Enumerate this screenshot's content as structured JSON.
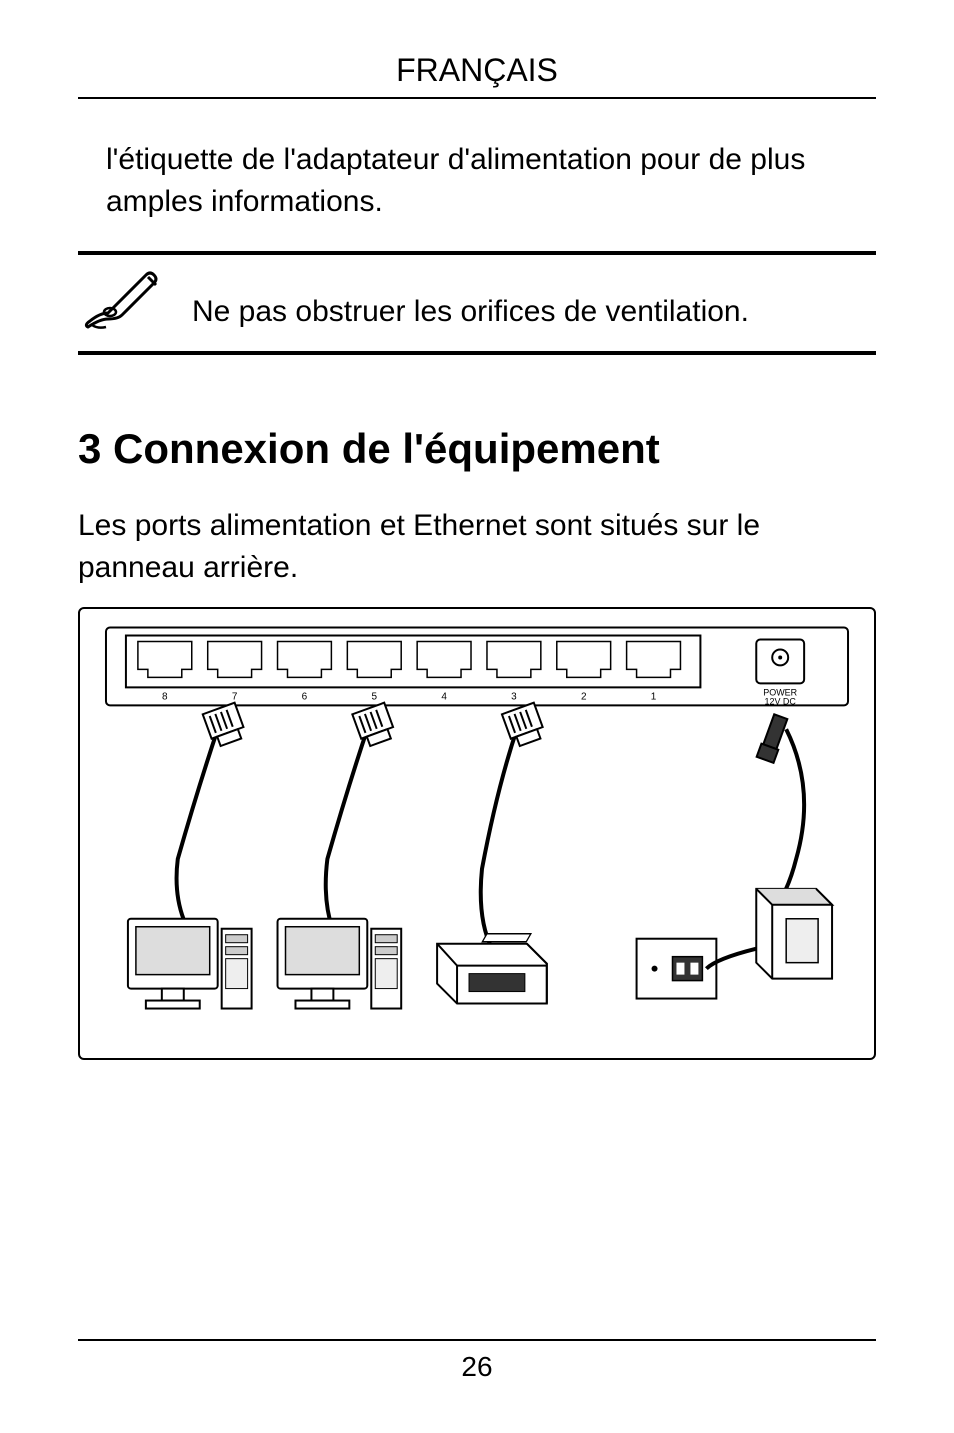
{
  "header": {
    "language": "FRANÇAIS"
  },
  "intro_continuation": "l'étiquette de l'adaptateur d'alimentation pour de plus amples informations.",
  "note": {
    "text": "Ne pas obstruer les orifices de ventilation."
  },
  "section": {
    "title": "3 Connexion de l'équipement",
    "body": "Les ports alimentation et Ethernet sont situés sur le panneau arrière."
  },
  "switch_panel": {
    "port_labels": [
      "8",
      "7",
      "6",
      "5",
      "4",
      "3",
      "2",
      "1"
    ],
    "power_label_line1": "POWER",
    "power_label_line2": "12V DC",
    "colors": {
      "stroke": "#000000",
      "fill_white": "#ffffff",
      "fill_light": "#dddddd",
      "fill_mid": "#888888",
      "fill_dark": "#333333"
    }
  },
  "footer": {
    "page_number": "26"
  }
}
